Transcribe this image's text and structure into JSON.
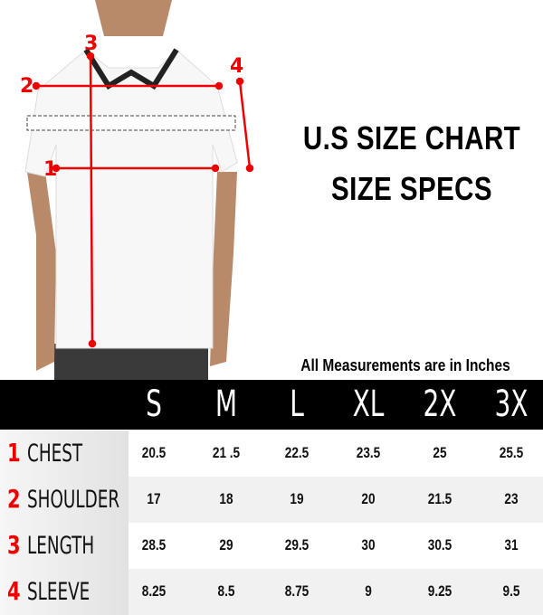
{
  "title_line1": "U.S SIZE CHART",
  "title_line2": "SIZE SPECS",
  "note": "All Measurements are in Inches",
  "sizes": [
    "S",
    "M",
    "L",
    "XL",
    "2X",
    "3X"
  ],
  "markers": [
    "1",
    "2",
    "3",
    "4"
  ],
  "rows": [
    {
      "num": "1",
      "label": "CHEST",
      "values": [
        "20.5",
        "21 .5",
        "22.5",
        "23.5",
        "25",
        "25.5"
      ]
    },
    {
      "num": "2",
      "label": "SHOULDER",
      "values": [
        "17",
        "18",
        "19",
        "20",
        "21.5",
        "23"
      ]
    },
    {
      "num": "3",
      "label": "LENGTH",
      "values": [
        "28.5",
        "29",
        "29.5",
        "30",
        "30.5",
        "31"
      ]
    },
    {
      "num": "4",
      "label": "SLEEVE",
      "values": [
        "8.25",
        "8.5",
        "8.75",
        "9",
        "9.25",
        "9.5"
      ]
    }
  ],
  "colors": {
    "accent": "#e00000",
    "header": "#000000"
  }
}
